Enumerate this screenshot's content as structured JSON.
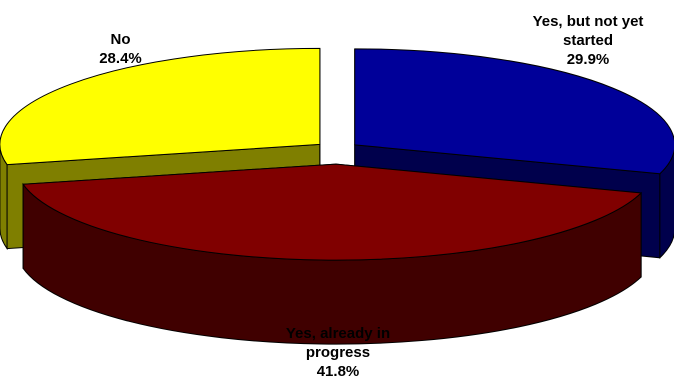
{
  "chart_data": {
    "type": "pie",
    "style": "3d-exploded",
    "slices": [
      {
        "label_lines": [
          "No"
        ],
        "percent_text": "28.4%",
        "value": 28.4,
        "color": "#ffff00",
        "side_color": "#7f7f00"
      },
      {
        "label_lines": [
          "Yes, but not yet",
          "started"
        ],
        "percent_text": "29.9%",
        "value": 29.9,
        "color": "#000099",
        "side_color": "#00004c"
      },
      {
        "label_lines": [
          "Yes, already in",
          "progress"
        ],
        "percent_text": "41.8%",
        "value": 41.8,
        "color": "#800000",
        "side_color": "#400000"
      }
    ],
    "legend": "none"
  }
}
